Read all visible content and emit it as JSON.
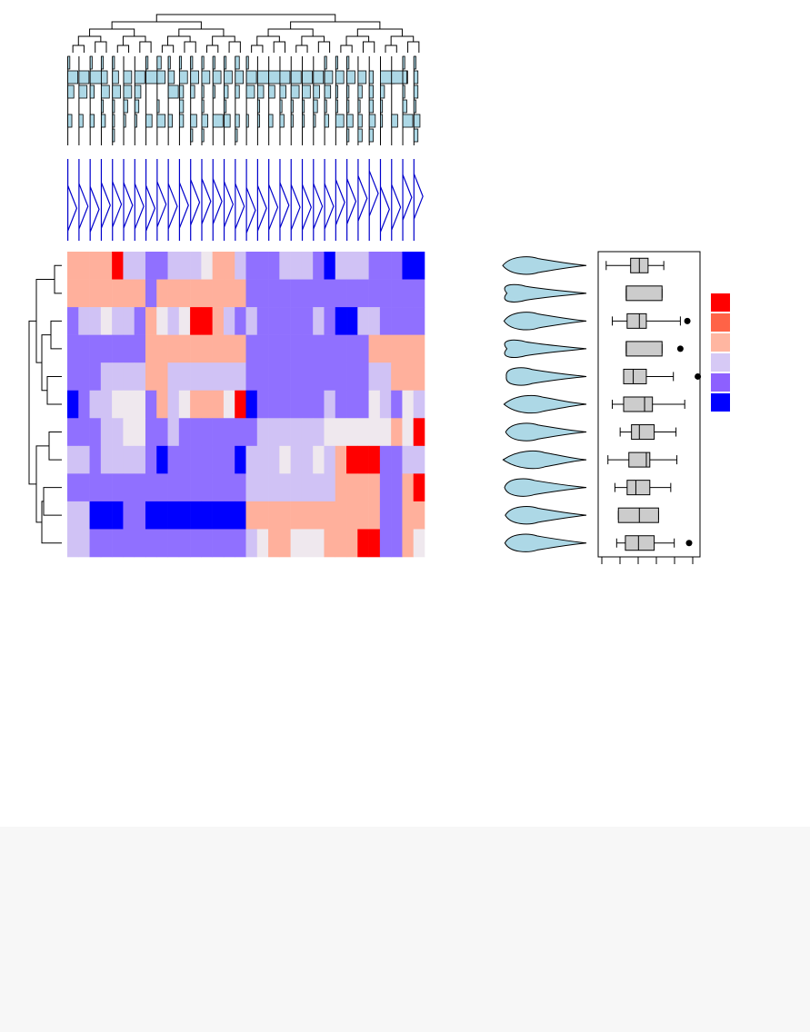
{
  "chart_data": {
    "type": "heatmap",
    "title": "",
    "xlabel": "",
    "ylabel": "",
    "n_rows": 11,
    "n_cols": 32,
    "row_order": [
      0,
      1,
      2,
      3,
      4,
      5,
      6,
      7,
      8,
      9,
      10
    ],
    "col_order_note": "",
    "color_levels": [
      2,
      1,
      0,
      -1,
      -2,
      -3
    ],
    "values": [
      [
        1,
        1,
        1,
        1,
        2,
        -1,
        -1,
        -2,
        -2,
        -1,
        -1,
        -1,
        0,
        1,
        1,
        -1,
        -2,
        -2,
        -2,
        -1,
        -1,
        -1,
        -2,
        -3,
        -1,
        -1,
        -1,
        -2,
        -2,
        -2,
        -3,
        -3
      ],
      [
        1,
        1,
        1,
        1,
        1,
        1,
        1,
        -2,
        1,
        1,
        1,
        1,
        1,
        1,
        1,
        1,
        -2,
        -2,
        -2,
        -2,
        -2,
        -2,
        -2,
        -2,
        -2,
        -2,
        -2,
        -2,
        -2,
        -2,
        -2,
        -2
      ],
      [
        -2,
        -1,
        -1,
        0,
        -1,
        -1,
        -2,
        1,
        0,
        -1,
        0,
        2,
        2,
        1,
        -1,
        -2,
        -1,
        -2,
        -2,
        -2,
        -2,
        -2,
        -1,
        -2,
        -3,
        -3,
        -1,
        -1,
        -2,
        -2,
        -2,
        -2
      ],
      [
        -2,
        -2,
        -2,
        -2,
        -2,
        -2,
        -2,
        1,
        1,
        1,
        1,
        1,
        1,
        1,
        1,
        1,
        -2,
        -2,
        -2,
        -2,
        -2,
        -2,
        -2,
        -2,
        -2,
        -2,
        -2,
        1,
        1,
        1,
        1,
        1
      ],
      [
        -2,
        -2,
        -2,
        -1,
        -1,
        -1,
        -1,
        1,
        1,
        -1,
        -1,
        -1,
        -1,
        -1,
        -1,
        -1,
        -2,
        -2,
        -2,
        -2,
        -2,
        -2,
        -2,
        -2,
        -2,
        -2,
        -2,
        -1,
        -1,
        1,
        1,
        1
      ],
      [
        -3,
        -2,
        -1,
        -1,
        0,
        0,
        0,
        -2,
        1,
        -1,
        0,
        1,
        1,
        1,
        0,
        2,
        -3,
        -2,
        -2,
        -2,
        -2,
        -2,
        -2,
        -1,
        -2,
        -2,
        -2,
        0,
        -1,
        -2,
        0,
        -1
      ],
      [
        -2,
        -2,
        -2,
        -1,
        -1,
        0,
        0,
        -2,
        -2,
        -1,
        -2,
        -2,
        -2,
        -2,
        -2,
        -2,
        -2,
        -1,
        -1,
        -1,
        -1,
        -1,
        -1,
        0,
        0,
        0,
        0,
        0,
        0,
        1,
        0,
        2
      ],
      [
        -1,
        -1,
        -2,
        -1,
        -1,
        -1,
        -1,
        -2,
        -3,
        -2,
        -2,
        -2,
        -2,
        -2,
        -2,
        -3,
        -1,
        -1,
        -1,
        0,
        -1,
        -1,
        0,
        -1,
        1,
        2,
        2,
        2,
        -2,
        -2,
        -1,
        -1
      ],
      [
        -2,
        -2,
        -2,
        -2,
        -2,
        -2,
        -2,
        -2,
        -2,
        -2,
        -2,
        -2,
        -2,
        -2,
        -2,
        -2,
        -1,
        -1,
        -1,
        -1,
        -1,
        -1,
        -1,
        -1,
        1,
        1,
        1,
        1,
        -2,
        -2,
        1,
        2
      ],
      [
        -1,
        -1,
        -3,
        -3,
        -3,
        -2,
        -2,
        -3,
        -3,
        -3,
        -3,
        -3,
        -3,
        -3,
        -3,
        -3,
        1,
        1,
        1,
        1,
        1,
        1,
        1,
        1,
        1,
        1,
        1,
        1,
        -2,
        -2,
        1,
        1
      ],
      [
        -1,
        -1,
        -2,
        -2,
        -2,
        -2,
        -2,
        -2,
        -2,
        -2,
        -2,
        -2,
        -2,
        -2,
        -2,
        -2,
        -1,
        0,
        1,
        1,
        0,
        0,
        0,
        1,
        1,
        1,
        2,
        2,
        -2,
        -2,
        1,
        0
      ]
    ],
    "row_boxplots": [
      {
        "min": 0.05,
        "q1": 0.33,
        "median": 0.43,
        "q3": 0.53,
        "max": 0.71,
        "outliers": []
      },
      {
        "min": 0.28,
        "q1": 0.28,
        "median": 0.28,
        "q3": 0.69,
        "max": 0.69,
        "outliers": []
      },
      {
        "min": 0.12,
        "q1": 0.29,
        "median": 0.43,
        "q3": 0.51,
        "max": 0.9,
        "outliers": [
          0.98
        ]
      },
      {
        "min": 0.28,
        "q1": 0.28,
        "median": 0.28,
        "q3": 0.69,
        "max": 0.69,
        "outliers": [
          0.9
        ]
      },
      {
        "min": 0.25,
        "q1": 0.25,
        "median": 0.36,
        "q3": 0.51,
        "max": 0.82,
        "outliers": [
          1.1
        ]
      },
      {
        "min": 0.12,
        "q1": 0.25,
        "median": 0.49,
        "q3": 0.58,
        "max": 0.95,
        "outliers": []
      },
      {
        "min": 0.21,
        "q1": 0.34,
        "median": 0.43,
        "q3": 0.6,
        "max": 0.85,
        "outliers": []
      },
      {
        "min": 0.07,
        "q1": 0.31,
        "median": 0.51,
        "q3": 0.55,
        "max": 0.86,
        "outliers": []
      },
      {
        "min": 0.15,
        "q1": 0.29,
        "median": 0.39,
        "q3": 0.55,
        "max": 0.79,
        "outliers": []
      },
      {
        "min": 0.19,
        "q1": 0.19,
        "median": 0.43,
        "q3": 0.65,
        "max": 0.65,
        "outliers": []
      },
      {
        "min": 0.17,
        "q1": 0.27,
        "median": 0.42,
        "q3": 0.6,
        "max": 0.83,
        "outliers": [
          1.0
        ]
      }
    ],
    "legend_colors": [
      "#ff0000",
      "#ff6347",
      "#ffb6a1",
      "#d6c9f5",
      "#8d60ff",
      "#0000ff"
    ],
    "cell_colors": {
      "2": "#ff0000",
      "1": "#ffb09c",
      "0": "#efe8ee",
      "-1": "#d0c2f5",
      "-2": "#9070ff",
      "-3": "#0000ff"
    },
    "row_dendrogram": [
      [
        1,
        2
      ],
      [
        3,
        4
      ],
      [
        13,
        5
      ],
      [
        12,
        14
      ],
      [
        7,
        8
      ],
      [
        10,
        11
      ],
      [
        9,
        17
      ],
      [
        6,
        16
      ],
      [
        18,
        15
      ],
      [
        19,
        20
      ]
    ],
    "col_dendrogram": [
      [
        1,
        2
      ],
      [
        3,
        4
      ],
      [
        5,
        6
      ],
      [
        7,
        8
      ],
      [
        9,
        10
      ],
      [
        11,
        12
      ],
      [
        13,
        14
      ],
      [
        15,
        16
      ],
      [
        17,
        18
      ],
      [
        19,
        20
      ],
      [
        21,
        22
      ],
      [
        23,
        24
      ],
      [
        25,
        26
      ],
      [
        27,
        28
      ],
      [
        29,
        30
      ],
      [
        31,
        32
      ],
      [
        33,
        34
      ],
      [
        35,
        36
      ],
      [
        37,
        38
      ],
      [
        39,
        40
      ],
      [
        41,
        42
      ],
      [
        43,
        44
      ],
      [
        45,
        46
      ],
      [
        47,
        48
      ],
      [
        49,
        50
      ],
      [
        51,
        52
      ],
      [
        53,
        54
      ],
      [
        55,
        56
      ],
      [
        57,
        58
      ],
      [
        59,
        60
      ],
      [
        61,
        62
      ]
    ],
    "legend": "right",
    "grid": false
  },
  "colors": {
    "violin_fill": "#add8e6",
    "hist_fill": "#add8e6",
    "col_density": "#0000cc",
    "box_fill": "#cccccc",
    "footer_bg": "#f7f7f7"
  }
}
